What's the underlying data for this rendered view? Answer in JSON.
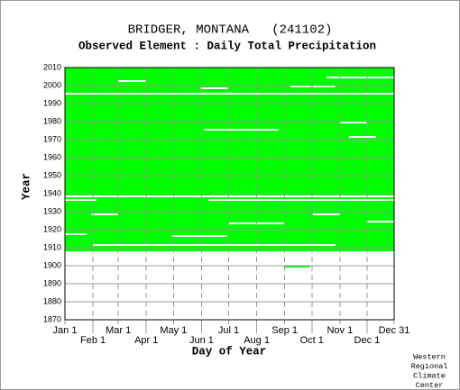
{
  "chart_data": {
    "type": "availability",
    "title": "BRIDGER, MONTANA   (241102)",
    "subtitle": "Observed Element : Daily Total Precipitation",
    "x_label": "Day of Year",
    "y_label": "Year",
    "credit": [
      "Western",
      "Regional",
      "Climate",
      "Center"
    ],
    "xlim": [
      1,
      365
    ],
    "ylim": [
      1870,
      2010
    ],
    "yticks": [
      1870,
      1880,
      1890,
      1900,
      1910,
      1920,
      1930,
      1940,
      1950,
      1960,
      1970,
      1980,
      1990,
      2000,
      2010
    ],
    "xticks": [
      {
        "value": 1,
        "label": "Jan 1"
      },
      {
        "value": 32,
        "label": "Feb 1"
      },
      {
        "value": 60,
        "label": "Mar 1"
      },
      {
        "value": 91,
        "label": "Apr 1"
      },
      {
        "value": 121,
        "label": "May 1"
      },
      {
        "value": 152,
        "label": "Jun 1"
      },
      {
        "value": 182,
        "label": "Jul 1"
      },
      {
        "value": 213,
        "label": "Aug 1"
      },
      {
        "value": 244,
        "label": "Sep 1"
      },
      {
        "value": 274,
        "label": "Oct 1"
      },
      {
        "value": 305,
        "label": "Nov 1"
      },
      {
        "value": 335,
        "label": "Dec 1"
      },
      {
        "value": 365,
        "label": "Dec 31"
      }
    ],
    "observed_color": "#00ff00",
    "observed": [
      {
        "days": [
          1,
          365
        ],
        "years": [
          1908,
          2010
        ]
      },
      {
        "days": [
          244,
          272
        ],
        "years": [
          1899,
          1900
        ]
      }
    ],
    "missing": [
      {
        "days": [
          1,
          365
        ],
        "year": 1995
      },
      {
        "days": [
          1,
          365
        ],
        "year": 1938
      },
      {
        "days": [
          1,
          36
        ],
        "year": 1936
      },
      {
        "days": [
          160,
          365
        ],
        "year": 1936
      },
      {
        "days": [
          155,
          237
        ],
        "year": 1975
      },
      {
        "days": [
          250,
          300
        ],
        "year": 1999
      },
      {
        "days": [
          151,
          181
        ],
        "year": 1998
      },
      {
        "days": [
          305,
          335
        ],
        "year": 1979
      },
      {
        "days": [
          315,
          345
        ],
        "year": 1971
      },
      {
        "days": [
          60,
          90
        ],
        "year": 2002
      },
      {
        "days": [
          290,
          365
        ],
        "year": 2004
      },
      {
        "days": [
          1,
          25
        ],
        "year": 1917
      },
      {
        "days": [
          32,
          300
        ],
        "year": 1911
      },
      {
        "days": [
          30,
          60
        ],
        "year": 1928
      },
      {
        "days": [
          182,
          244
        ],
        "year": 1923
      },
      {
        "days": [
          275,
          305
        ],
        "year": 1928
      },
      {
        "days": [
          335,
          365
        ],
        "year": 1924
      },
      {
        "days": [
          120,
          180
        ],
        "year": 1916
      }
    ]
  }
}
